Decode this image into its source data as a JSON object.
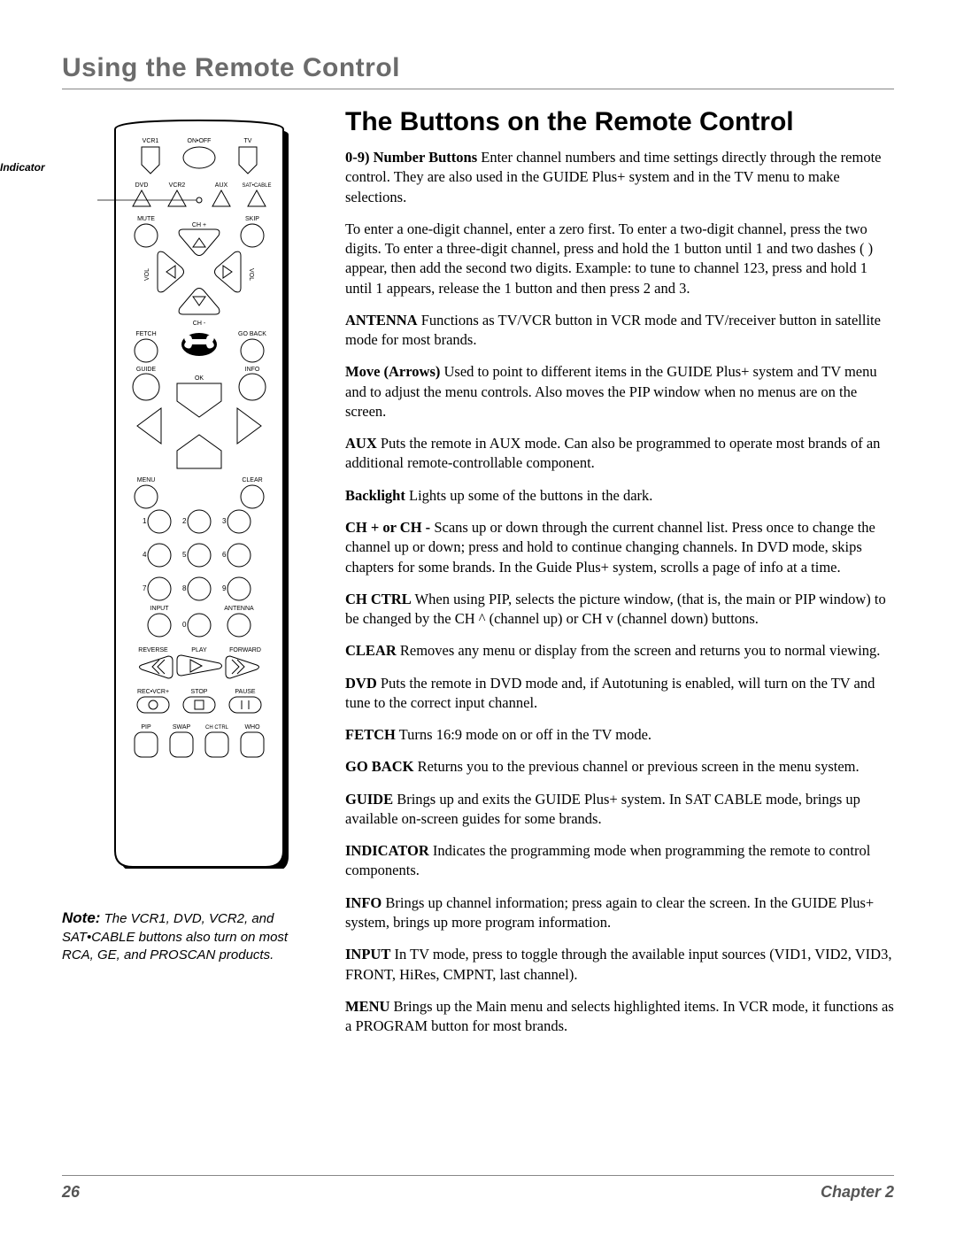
{
  "header": "Using the Remote Control",
  "section_title": "The Buttons on the Remote Control",
  "indicator_label": "Indicator",
  "items": [
    {
      "term": "0-9) Number Buttons",
      "text": "   Enter channel numbers and time settings directly through the remote control. They are also used in the GUIDE Plus+ system and in the TV menu to make selections."
    },
    {
      "term": "",
      "text": "To enter a one-digit channel, enter a zero first. To enter a two-digit channel, press the two digits. To enter a three-digit channel, press and hold the  1  button until  1  and two dashes (     ) appear, then add the second two digits. Example: to tune to channel 123, press and hold 1 until  1        appears, release the 1 button and then press 2 and 3."
    },
    {
      "term": "ANTENNA",
      "text": "   Functions as TV/VCR button in VCR mode and TV/receiver button in satellite mode for most brands."
    },
    {
      "term": "Move (Arrows)",
      "text": "   Used to point to different items in the GUIDE Plus+ system and TV menu and to adjust the menu controls. Also moves the PIP window when no menus are on the screen."
    },
    {
      "term": "AUX",
      "text": "   Puts the remote in AUX mode. Can also be programmed to operate most brands of an additional remote-controllable component."
    },
    {
      "term": "Backlight",
      "text": "  Lights up some of the buttons in the dark."
    },
    {
      "term": "CH + or CH -",
      "text": "   Scans up or down through the current channel list. Press once to change the channel up or down; press and hold to continue changing channels. In DVD mode, skips chapters for some brands. In the Guide Plus+ system, scrolls a page of info at a time."
    },
    {
      "term": "CH CTRL",
      "text": "   When using PIP, selects the picture window, (that is, the main or PIP window) to be changed by the CH ^ (channel up) or CH v (channel down) buttons."
    },
    {
      "term": "CLEAR",
      "text": "   Removes any menu or display from the screen and returns you to normal viewing."
    },
    {
      "term": "DVD",
      "text": "   Puts the remote in DVD mode and, if Autotuning is enabled, will turn on the TV and tune to the correct input channel."
    },
    {
      "term": "FETCH",
      "text": "   Turns 16:9 mode on or off in the TV mode."
    },
    {
      "term": "GO BACK",
      "text": "   Returns you to the previous channel or previous screen in the menu system."
    },
    {
      "term": "GUIDE",
      "text": "   Brings up and exits the GUIDE Plus+ system. In SAT  CABLE mode, brings up available on-screen guides for some brands."
    },
    {
      "term": "INDICATOR",
      "text": "   Indicates the programming mode when programming the remote to control components."
    },
    {
      "term": "INFO",
      "text": "   Brings up channel information; press again to clear the screen. In the GUIDE Plus+ system, brings up more program information."
    },
    {
      "term": "INPUT",
      "text": "   In TV mode, press to toggle through the available input sources (VID1, VID2, VID3, FRONT, HiRes, CMPNT, last channel)."
    },
    {
      "term": "MENU",
      "text": "   Brings up the Main menu and selects highlighted items. In VCR mode, it functions as a PROGRAM button for most brands."
    }
  ],
  "note": {
    "label": "Note:",
    "text": " The VCR1, DVD, VCR2, and SAT•CABLE buttons also turn on most RCA, GE, and PROSCAN products."
  },
  "footer": {
    "page": "26",
    "chapter": "Chapter 2"
  },
  "remote": {
    "row1": [
      "VCR1",
      "ON•OFF",
      "TV"
    ],
    "row2": [
      "DVD",
      "VCR2",
      "AUX",
      "SAT•CABLE"
    ],
    "mute": "MUTE",
    "skip": "SKIP",
    "chp": "CH +",
    "chm": "CH -",
    "vol": "VOL",
    "fetch": "FETCH",
    "goback": "GO BACK",
    "guide": "GUIDE",
    "info": "INFO",
    "ok": "OK",
    "menu": "MENU",
    "clear": "CLEAR",
    "input": "INPUT",
    "antenna": "ANTENNA",
    "reverse": "REVERSE",
    "play": "PLAY",
    "forward": "FORWARD",
    "rec": "REC•VCR+",
    "stop": "STOP",
    "pause": "PAUSE",
    "pip": "PIP",
    "swap": "SWAP",
    "chctrl": "CH CTRL",
    "who": "WHO"
  }
}
